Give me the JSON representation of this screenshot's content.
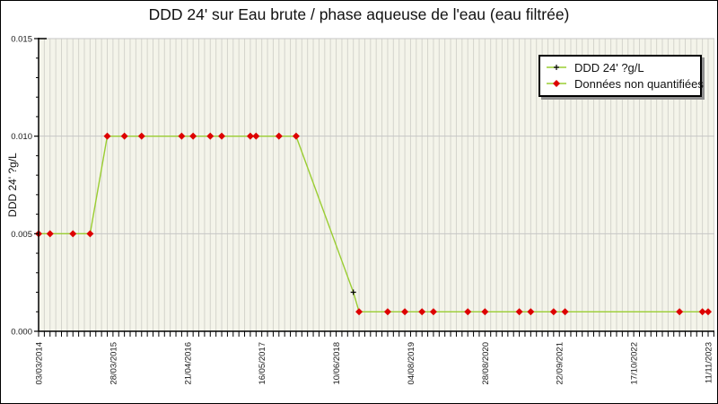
{
  "chart_data": {
    "type": "line",
    "title": "DDD 24' sur Eau brute / phase aqueuse de l'eau (eau filtrée)",
    "xlabel": "",
    "ylabel": "DDD 24' ?g/L",
    "ylim": [
      0,
      0.015
    ],
    "y_major_ticks": [
      0,
      0.005,
      0.01,
      0.015
    ],
    "y_tick_labels": [
      "0.000",
      "0.005",
      "0.010",
      "0.015"
    ],
    "y_minor_step": 0.001,
    "x_axis_note": "one slot per sample; thin gridline and axis tick at every slot",
    "x_slot_count": 118,
    "x_tick_slots": [
      0,
      13,
      26,
      39,
      52,
      65,
      78,
      91,
      104,
      117
    ],
    "x_tick_labels": [
      "03/03/2014",
      "28/03/2015",
      "21/04/2016",
      "16/05/2017",
      "10/06/2018",
      "04/08/2019",
      "28/08/2020",
      "22/09/2021",
      "17/10/2022",
      "11/11/2023"
    ],
    "x_tick_label_rotation_deg": -90,
    "grid": "vertical stripe per sample slot + horizontal lines at y majors",
    "legend_position": "top-right",
    "point_format": "[slot_index, value_?g/L]",
    "series": [
      {
        "name": "DDD 24' ?g/L",
        "marker": "black-plus",
        "points": [
          [
            55,
            0.002
          ]
        ]
      },
      {
        "name": "Données non quantifiées",
        "marker": "red-diamond",
        "points": [
          [
            0,
            0.005
          ],
          [
            2,
            0.005
          ],
          [
            6,
            0.005
          ],
          [
            9,
            0.005
          ],
          [
            12,
            0.01
          ],
          [
            15,
            0.01
          ],
          [
            18,
            0.01
          ],
          [
            25,
            0.01
          ],
          [
            27,
            0.01
          ],
          [
            30,
            0.01
          ],
          [
            32,
            0.01
          ],
          [
            37,
            0.01
          ],
          [
            38,
            0.01
          ],
          [
            42,
            0.01
          ],
          [
            45,
            0.01
          ],
          [
            56,
            0.001
          ],
          [
            61,
            0.001
          ],
          [
            64,
            0.001
          ],
          [
            67,
            0.001
          ],
          [
            69,
            0.001
          ],
          [
            75,
            0.001
          ],
          [
            78,
            0.001
          ],
          [
            84,
            0.001
          ],
          [
            86,
            0.001
          ],
          [
            90,
            0.001
          ],
          [
            92,
            0.001
          ],
          [
            112,
            0.001
          ],
          [
            116,
            0.001
          ],
          [
            117,
            0.001
          ]
        ]
      }
    ],
    "line_connects_all_points_in_slot_order": true,
    "colors": {
      "line": "#9acd32",
      "non_quantified_marker": "#dd0000",
      "quantified_marker": "#000000",
      "plot_bg": "#f4f4ea",
      "stripe": "#d4d4cc",
      "grid": "#c6c6c6",
      "axis": "#000000",
      "tick_text": "#1a1a1a"
    }
  }
}
